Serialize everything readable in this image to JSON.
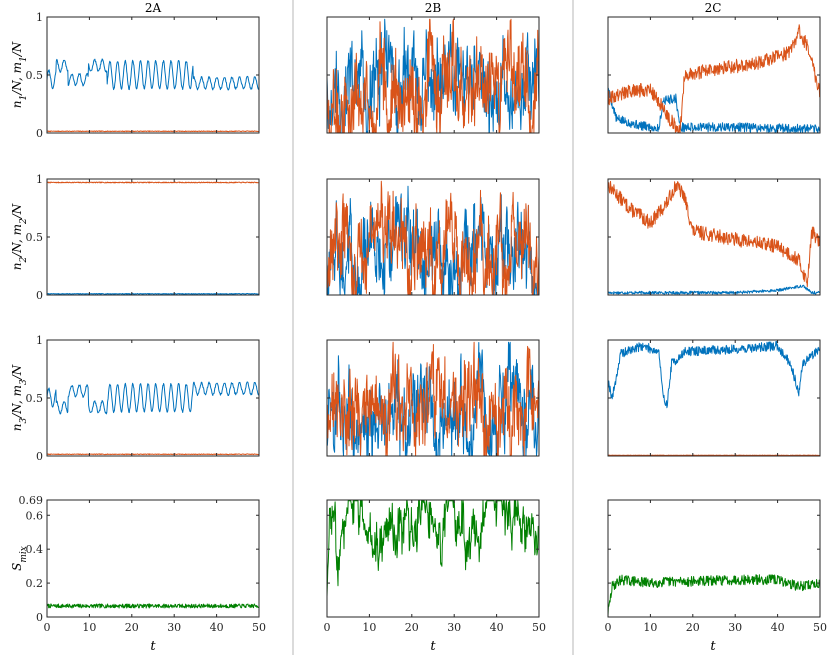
{
  "figure": {
    "columns": [
      "2A",
      "2B",
      "2C"
    ],
    "row_ylabels": [
      [
        "n",
        "1",
        "/N,   m",
        "1",
        "/N"
      ],
      [
        "n",
        "2",
        "/N,   m",
        "2",
        "/N"
      ],
      [
        "n",
        "3",
        "/N,   m",
        "3",
        "/N"
      ],
      [
        "S",
        "mix",
        "",
        "",
        ""
      ]
    ],
    "xlabel": "t",
    "x_ticks": [
      "0",
      "10",
      "20",
      "30",
      "40",
      "50"
    ],
    "y_ticks_fraction": [
      "0",
      "0.5",
      "1"
    ],
    "y_ticks_entropy": [
      "0",
      "0.2",
      "0.4",
      "0.6",
      "0.69"
    ],
    "colors": {
      "n": "#0072BD",
      "m": "#D95319",
      "entropy": "#008000"
    }
  },
  "chart_data": [
    {
      "type": "line",
      "panel": "2A row1",
      "xlim": [
        0,
        50
      ],
      "ylim": [
        0,
        1
      ],
      "series": [
        {
          "key": "n",
          "mode": "osc",
          "base": 0.46,
          "amp": 0.09,
          "period": 1.8,
          "noise": 0.01,
          "segments": [
            [
              0,
              2.2,
              0.46,
              0.08
            ],
            [
              2.2,
              5,
              0.58,
              0.05
            ],
            [
              5,
              9.8,
              0.46,
              0.05
            ],
            [
              9.8,
              14.2,
              0.58,
              0.05
            ],
            [
              14.2,
              34.5,
              0.5,
              0.12
            ],
            [
              34.5,
              50,
              0.43,
              0.05
            ]
          ]
        },
        {
          "key": "m",
          "mode": "flat",
          "base": 0.015,
          "noise": 0.003
        }
      ]
    },
    {
      "type": "line",
      "panel": "2B row1",
      "xlim": [
        0,
        50
      ],
      "ylim": [
        0,
        1
      ],
      "series": [
        {
          "key": "n",
          "mode": "chaos",
          "base": 0.38,
          "spread": 0.32,
          "seed": 11
        },
        {
          "key": "m",
          "mode": "chaos",
          "base": 0.36,
          "spread": 0.34,
          "seed": 23
        }
      ]
    },
    {
      "type": "line",
      "panel": "2C row1",
      "xlim": [
        0,
        50
      ],
      "ylim": [
        0,
        1
      ],
      "series": [
        {
          "key": "n",
          "mode": "piece",
          "seed": 5,
          "noise": 0.04,
          "knots": [
            [
              0,
              0.38
            ],
            [
              2,
              0.12
            ],
            [
              8,
              0.06
            ],
            [
              12,
              0.04
            ],
            [
              13,
              0.28
            ],
            [
              16,
              0.3
            ],
            [
              17,
              0.05
            ],
            [
              30,
              0.05
            ],
            [
              50,
              0.03
            ]
          ]
        },
        {
          "key": "m",
          "mode": "piece",
          "seed": 9,
          "noise": 0.06,
          "knots": [
            [
              0,
              0.3
            ],
            [
              4,
              0.35
            ],
            [
              10,
              0.38
            ],
            [
              15,
              0.1
            ],
            [
              17,
              0.0
            ],
            [
              18,
              0.5
            ],
            [
              25,
              0.55
            ],
            [
              35,
              0.6
            ],
            [
              43,
              0.7
            ],
            [
              45,
              0.88
            ],
            [
              47,
              0.75
            ],
            [
              50,
              0.35
            ]
          ]
        }
      ]
    },
    {
      "type": "line",
      "panel": "2A row2",
      "xlim": [
        0,
        50
      ],
      "ylim": [
        0,
        1
      ],
      "series": [
        {
          "key": "m",
          "mode": "flat",
          "base": 0.97,
          "noise": 0.004
        },
        {
          "key": "n",
          "mode": "flat",
          "base": 0.01,
          "noise": 0.003
        }
      ]
    },
    {
      "type": "line",
      "panel": "2B row2",
      "xlim": [
        0,
        50
      ],
      "ylim": [
        0,
        1
      ],
      "series": [
        {
          "key": "n",
          "mode": "chaos",
          "base": 0.33,
          "spread": 0.28,
          "seed": 31
        },
        {
          "key": "m",
          "mode": "chaos",
          "base": 0.38,
          "spread": 0.33,
          "seed": 47
        }
      ]
    },
    {
      "type": "line",
      "panel": "2C row2",
      "xlim": [
        0,
        50
      ],
      "ylim": [
        0,
        1
      ],
      "series": [
        {
          "key": "m",
          "mode": "piece",
          "seed": 13,
          "noise": 0.06,
          "knots": [
            [
              0,
              0.95
            ],
            [
              5,
              0.75
            ],
            [
              10,
              0.62
            ],
            [
              14,
              0.8
            ],
            [
              16,
              0.95
            ],
            [
              18,
              0.85
            ],
            [
              20,
              0.55
            ],
            [
              30,
              0.48
            ],
            [
              40,
              0.42
            ],
            [
              45,
              0.3
            ],
            [
              47,
              0.1
            ],
            [
              48,
              0.55
            ],
            [
              50,
              0.45
            ]
          ]
        },
        {
          "key": "n",
          "mode": "piece",
          "seed": 17,
          "noise": 0.012,
          "knots": [
            [
              0,
              0.02
            ],
            [
              30,
              0.02
            ],
            [
              40,
              0.04
            ],
            [
              46,
              0.08
            ],
            [
              48,
              0.02
            ],
            [
              50,
              0.02
            ]
          ]
        }
      ]
    },
    {
      "type": "line",
      "panel": "2A row3",
      "xlim": [
        0,
        50
      ],
      "ylim": [
        0,
        1
      ],
      "series": [
        {
          "key": "n",
          "mode": "osc",
          "base": 0.5,
          "amp": 0.09,
          "period": 1.8,
          "noise": 0.01,
          "segments": [
            [
              0,
              2.2,
              0.5,
              0.08
            ],
            [
              2.2,
              5,
              0.42,
              0.05
            ],
            [
              5,
              9.8,
              0.56,
              0.05
            ],
            [
              9.8,
              14.2,
              0.42,
              0.05
            ],
            [
              14.2,
              34.5,
              0.5,
              0.12
            ],
            [
              34.5,
              50,
              0.58,
              0.05
            ]
          ]
        },
        {
          "key": "m",
          "mode": "flat",
          "base": 0.015,
          "noise": 0.003
        }
      ]
    },
    {
      "type": "line",
      "panel": "2B row3",
      "xlim": [
        0,
        50
      ],
      "ylim": [
        0,
        1
      ],
      "series": [
        {
          "key": "n",
          "mode": "chaos",
          "base": 0.4,
          "spread": 0.3,
          "seed": 59
        },
        {
          "key": "m",
          "mode": "chaos",
          "base": 0.36,
          "spread": 0.33,
          "seed": 71
        }
      ]
    },
    {
      "type": "line",
      "panel": "2C row3",
      "xlim": [
        0,
        50
      ],
      "ylim": [
        0,
        1
      ],
      "series": [
        {
          "key": "n",
          "mode": "piece",
          "seed": 19,
          "noise": 0.04,
          "knots": [
            [
              0,
              0.65
            ],
            [
              1,
              0.5
            ],
            [
              3,
              0.88
            ],
            [
              8,
              0.95
            ],
            [
              12,
              0.9
            ],
            [
              13,
              0.5
            ],
            [
              14,
              0.45
            ],
            [
              15,
              0.8
            ],
            [
              17,
              0.85
            ],
            [
              18,
              0.9
            ],
            [
              30,
              0.92
            ],
            [
              40,
              0.95
            ],
            [
              43,
              0.8
            ],
            [
              45,
              0.55
            ],
            [
              46,
              0.8
            ],
            [
              50,
              0.93
            ]
          ]
        },
        {
          "key": "m",
          "mode": "flat",
          "base": 0.006,
          "noise": 0.002
        }
      ]
    },
    {
      "type": "line",
      "panel": "2A row4",
      "xlim": [
        0,
        50
      ],
      "ylim": [
        0,
        0.69
      ],
      "series": [
        {
          "key": "entropy",
          "mode": "flat",
          "base": 0.065,
          "noise": 0.012
        }
      ]
    },
    {
      "type": "line",
      "panel": "2B row4",
      "xlim": [
        0,
        50
      ],
      "ylim": [
        0,
        0.69
      ],
      "series": [
        {
          "key": "entropy",
          "mode": "sat",
          "base": 0.55,
          "spread": 0.16,
          "seed": 83,
          "cap": 0.685,
          "start": 0.12
        }
      ]
    },
    {
      "type": "line",
      "panel": "2C row4",
      "xlim": [
        0,
        50
      ],
      "ylim": [
        0,
        0.69
      ],
      "series": [
        {
          "key": "entropy",
          "mode": "piece",
          "seed": 29,
          "noise": 0.03,
          "knots": [
            [
              0,
              0.02
            ],
            [
              1,
              0.18
            ],
            [
              3,
              0.22
            ],
            [
              10,
              0.2
            ],
            [
              15,
              0.21
            ],
            [
              20,
              0.21
            ],
            [
              30,
              0.22
            ],
            [
              40,
              0.22
            ],
            [
              45,
              0.18
            ],
            [
              50,
              0.2
            ]
          ]
        }
      ]
    }
  ]
}
